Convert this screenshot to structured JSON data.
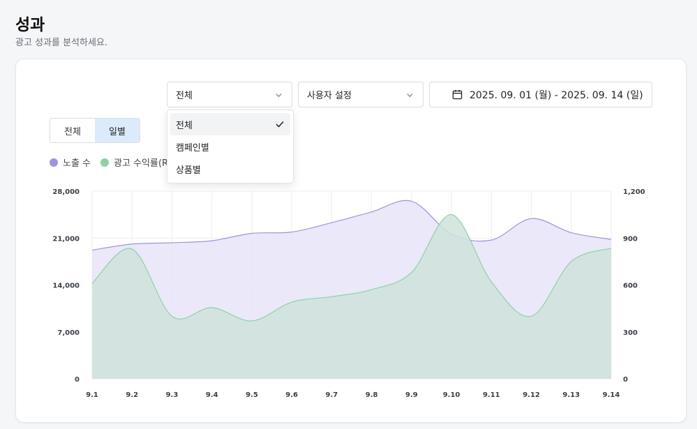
{
  "header": {
    "title": "성과",
    "subtitle": "광고 성과를 분석하세요."
  },
  "filters": {
    "type_select": {
      "value": "전체"
    },
    "period_select": {
      "value": "사용자 설정"
    },
    "date_range": "2025. 09. 01 (월) - 2025. 09. 14 (일)",
    "dropdown": {
      "options": [
        "전체",
        "캠페인별",
        "상품별"
      ],
      "selected": "전체"
    }
  },
  "view_toggle": {
    "options": [
      "전체",
      "일별"
    ],
    "active": "일별"
  },
  "legend": [
    {
      "label": "노출 수",
      "color": "#9b96dc"
    },
    {
      "label": "광고 수익률(ROAS)",
      "color": "#8fd1a4"
    }
  ],
  "chart_data": {
    "type": "area",
    "categories": [
      "9.1",
      "9.2",
      "9.3",
      "9.4",
      "9.5",
      "9.6",
      "9.7",
      "9.8",
      "9.9",
      "9.10",
      "9.11",
      "9.12",
      "9.13",
      "9.14"
    ],
    "y_left": {
      "ticks": [
        "0",
        "7,000",
        "14,000",
        "21,000",
        "28,000"
      ],
      "range": [
        0,
        28000
      ]
    },
    "y_right": {
      "ticks": [
        "0",
        "300",
        "600",
        "900",
        "1,200"
      ],
      "range": [
        0,
        1200
      ]
    },
    "grid": true,
    "series": [
      {
        "name": "노출 수",
        "axis": "left",
        "color": "#9b96dc",
        "fill": "#e8e6f8",
        "values": [
          19200,
          20100,
          20300,
          20600,
          21700,
          21900,
          23300,
          24900,
          26500,
          21600,
          20700,
          23900,
          21800,
          20800
        ]
      },
      {
        "name": "광고 수익률(ROAS)",
        "axis": "right",
        "color": "#8fd1a4",
        "fill": "#cfe3dc",
        "values": [
          610,
          830,
          400,
          455,
          370,
          490,
          525,
          570,
          680,
          1050,
          620,
          400,
          750,
          835
        ]
      }
    ]
  }
}
